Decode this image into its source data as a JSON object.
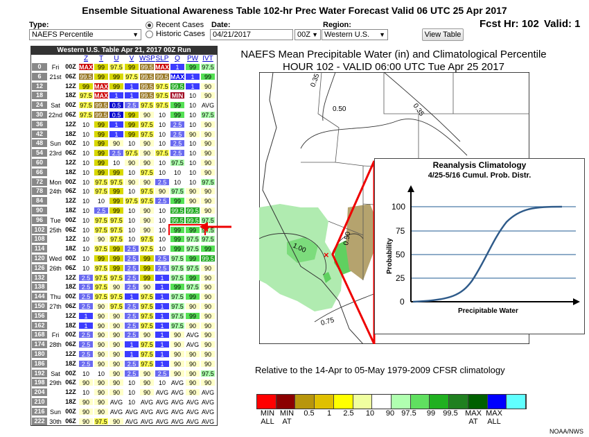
{
  "title": "Ensemble Situational Awareness Table 102-hr Prec Water Forecast Valid 06 UTC 25 Apr 2017",
  "controls": {
    "type_label": "Type:",
    "type_value": "NAEFS Percentile",
    "radio_recent": "Recent Cases",
    "radio_historic": "Historic Cases",
    "date_label": "Date:",
    "date_value": "04/21/2017",
    "cycle_value": "00Z",
    "region_label": "Region:",
    "region_value": "Western U.S.",
    "view_button": "View Table",
    "fcst_hr": "Fcst Hr: 102",
    "valid": "Valid: 1"
  },
  "table": {
    "header": "Western U.S. Table  Apr 21, 2017 00Z Run",
    "vars": [
      "Z",
      "T",
      "U",
      "V",
      "WSP",
      "SLP",
      "Q",
      "PW",
      "IVT"
    ],
    "colors": {
      "MAX": "#cc0000",
      "99.5": "#9a7b2a",
      "99": "#d8d800",
      "97.5": "#ffff55",
      "90": "#ffffc8",
      "10": "#ffffff",
      "2.5": "#6a6af0",
      "1": "#3c3cff",
      "0.5": "#1010d0",
      "MIN": "#a0001c",
      "AVG": "#ffffff",
      "g97": "#aaffaa",
      "g99": "#55e055",
      "g995": "#22aa22",
      "gMAX": "#007700"
    },
    "rows": [
      {
        "hr": "0",
        "day": "Fri",
        "z": "00Z",
        "v": [
          "MAX",
          "99",
          "97.5",
          "99",
          "99.5",
          "MAX",
          "1",
          "99",
          "97.5"
        ]
      },
      {
        "hr": "6",
        "day": "21st",
        "z": "06Z",
        "v": [
          "99.5",
          "99",
          "99",
          "97.5",
          "99.5",
          "99.5",
          "MAX",
          "1",
          "99"
        ]
      },
      {
        "hr": "12",
        "day": "",
        "z": "12Z",
        "v": [
          "99",
          "MAX",
          "99",
          "1",
          "99.5",
          "97.5",
          "99.5",
          "1",
          "90"
        ]
      },
      {
        "hr": "18",
        "day": "",
        "z": "18Z",
        "v": [
          "97.5",
          "MAX",
          "1",
          "1",
          "99.5",
          "97.5",
          "MIN",
          "10",
          "90"
        ]
      },
      {
        "hr": "24",
        "day": "Sat",
        "z": "00Z",
        "v": [
          "97.5",
          "99.5",
          "0.5",
          "2.5",
          "97.5",
          "97.5",
          "99",
          "10",
          "AVG"
        ]
      },
      {
        "hr": "30",
        "day": "22nd",
        "z": "06Z",
        "v": [
          "97.5",
          "99.5",
          "0.5",
          "99",
          "90",
          "10",
          "99",
          "10",
          "97.5"
        ]
      },
      {
        "hr": "36",
        "day": "",
        "z": "12Z",
        "v": [
          "10",
          "99",
          "1",
          "99",
          "97.5",
          "10",
          "2.5",
          "10",
          "90"
        ]
      },
      {
        "hr": "42",
        "day": "",
        "z": "18Z",
        "v": [
          "10",
          "99",
          "1",
          "99",
          "97.5",
          "10",
          "2.5",
          "90",
          "90"
        ]
      },
      {
        "hr": "48",
        "day": "Sun",
        "z": "00Z",
        "v": [
          "10",
          "99",
          "90",
          "10",
          "90",
          "10",
          "2.5",
          "10",
          "90"
        ]
      },
      {
        "hr": "54",
        "day": "23rd",
        "z": "06Z",
        "v": [
          "10",
          "99",
          "2.5",
          "97.5",
          "90",
          "97.5",
          "2.5",
          "10",
          "90"
        ]
      },
      {
        "hr": "60",
        "day": "",
        "z": "12Z",
        "v": [
          "10",
          "99",
          "10",
          "90",
          "90",
          "10",
          "97.5",
          "10",
          "90"
        ]
      },
      {
        "hr": "66",
        "day": "",
        "z": "18Z",
        "v": [
          "10",
          "99",
          "99",
          "10",
          "97.5",
          "10",
          "10",
          "10",
          "90"
        ]
      },
      {
        "hr": "72",
        "day": "Mon",
        "z": "00Z",
        "v": [
          "10",
          "97.5",
          "97.5",
          "90",
          "90",
          "2.5",
          "10",
          "10",
          "97.5"
        ]
      },
      {
        "hr": "78",
        "day": "24th",
        "z": "06Z",
        "v": [
          "10",
          "97.5",
          "99",
          "10",
          "97.5",
          "90",
          "97.5",
          "90",
          "90"
        ]
      },
      {
        "hr": "84",
        "day": "",
        "z": "12Z",
        "v": [
          "10",
          "10",
          "99",
          "97.5",
          "97.5",
          "2.5",
          "99",
          "90",
          "90"
        ]
      },
      {
        "hr": "90",
        "day": "",
        "z": "18Z",
        "v": [
          "10",
          "2.5",
          "99",
          "10",
          "90",
          "10",
          "99.5",
          "99.5",
          "90"
        ]
      },
      {
        "hr": "96",
        "day": "Tue",
        "z": "00Z",
        "v": [
          "10",
          "97.5",
          "97.5",
          "10",
          "90",
          "10",
          "99.5",
          "99.5",
          "97.5"
        ]
      },
      {
        "hr": "102",
        "day": "25th",
        "z": "06Z",
        "v": [
          "10",
          "97.5",
          "97.5",
          "10",
          "90",
          "10",
          "99",
          "99",
          "97.5"
        ]
      },
      {
        "hr": "108",
        "day": "",
        "z": "12Z",
        "v": [
          "10",
          "90",
          "97.5",
          "10",
          "97.5",
          "10",
          "99",
          "97.5",
          "97.5"
        ]
      },
      {
        "hr": "114",
        "day": "",
        "z": "18Z",
        "v": [
          "10",
          "97.5",
          "99",
          "2.5",
          "97.5",
          "10",
          "99",
          "97.5",
          "99"
        ]
      },
      {
        "hr": "120",
        "day": "Wed",
        "z": "00Z",
        "v": [
          "10",
          "99",
          "99",
          "2.5",
          "99",
          "2.5",
          "97.5",
          "99",
          "99.5"
        ]
      },
      {
        "hr": "126",
        "day": "26th",
        "z": "06Z",
        "v": [
          "10",
          "97.5",
          "99",
          "2.5",
          "99",
          "2.5",
          "97.5",
          "97.5",
          "90"
        ]
      },
      {
        "hr": "132",
        "day": "",
        "z": "12Z",
        "v": [
          "2.5",
          "97.5",
          "97.5",
          "2.5",
          "99",
          "1",
          "97.5",
          "99",
          "90"
        ]
      },
      {
        "hr": "138",
        "day": "",
        "z": "18Z",
        "v": [
          "2.5",
          "97.5",
          "90",
          "2.5",
          "90",
          "1",
          "99",
          "97.5",
          "90"
        ]
      },
      {
        "hr": "144",
        "day": "Thu",
        "z": "00Z",
        "v": [
          "2.5",
          "97.5",
          "97.5",
          "1",
          "97.5",
          "1",
          "97.5",
          "99",
          "90"
        ]
      },
      {
        "hr": "150",
        "day": "27th",
        "z": "06Z",
        "v": [
          "2.5",
          "90",
          "97.5",
          "2.5",
          "97.5",
          "1",
          "97.5",
          "90",
          "90"
        ]
      },
      {
        "hr": "156",
        "day": "",
        "z": "12Z",
        "v": [
          "1",
          "90",
          "90",
          "2.5",
          "97.5",
          "1",
          "97.5",
          "99",
          "90"
        ]
      },
      {
        "hr": "162",
        "day": "",
        "z": "18Z",
        "v": [
          "1",
          "90",
          "90",
          "2.5",
          "97.5",
          "1",
          "97.5",
          "90",
          "90"
        ]
      },
      {
        "hr": "168",
        "day": "Fri",
        "z": "00Z",
        "v": [
          "2.5",
          "90",
          "90",
          "2.5",
          "90",
          "1",
          "90",
          "AVG",
          "90"
        ]
      },
      {
        "hr": "174",
        "day": "28th",
        "z": "06Z",
        "v": [
          "2.5",
          "90",
          "90",
          "1",
          "97.5",
          "1",
          "90",
          "AVG",
          "90"
        ]
      },
      {
        "hr": "180",
        "day": "",
        "z": "12Z",
        "v": [
          "2.5",
          "90",
          "90",
          "1",
          "97.5",
          "1",
          "90",
          "90",
          "90"
        ]
      },
      {
        "hr": "186",
        "day": "",
        "z": "18Z",
        "v": [
          "2.5",
          "90",
          "90",
          "2.5",
          "97.5",
          "1",
          "90",
          "90",
          "90"
        ]
      },
      {
        "hr": "192",
        "day": "Sat",
        "z": "00Z",
        "v": [
          "10",
          "10",
          "90",
          "2.5",
          "90",
          "2.5",
          "90",
          "90",
          "97.5"
        ]
      },
      {
        "hr": "198",
        "day": "29th",
        "z": "06Z",
        "v": [
          "90",
          "90",
          "90",
          "10",
          "90",
          "10",
          "AVG",
          "90",
          "90"
        ]
      },
      {
        "hr": "204",
        "day": "",
        "z": "12Z",
        "v": [
          "10",
          "90",
          "90",
          "10",
          "90",
          "AVG",
          "AVG",
          "90",
          "AVG"
        ]
      },
      {
        "hr": "210",
        "day": "",
        "z": "18Z",
        "v": [
          "90",
          "90",
          "AVG",
          "10",
          "AVG",
          "AVG",
          "AVG",
          "AVG",
          "AVG"
        ]
      },
      {
        "hr": "216",
        "day": "Sun",
        "z": "00Z",
        "v": [
          "90",
          "90",
          "AVG",
          "AVG",
          "AVG",
          "AVG",
          "AVG",
          "AVG",
          "AVG"
        ]
      },
      {
        "hr": "222",
        "day": "30th",
        "z": "06Z",
        "v": [
          "90",
          "97.5",
          "90",
          "AVG",
          "AVG",
          "AVG",
          "AVG",
          "AVG",
          "AVG"
        ]
      }
    ]
  },
  "map": {
    "title_line1": "NAEFS Mean Precipitable Water (in) and Climatological Percentile",
    "title_line2": "HOUR 102 - VALID 06:00 UTC Tue Apr 25 2017",
    "contours": [
      "0.35",
      "0.35",
      "0.50",
      "1.00",
      "0.50",
      "0.75"
    ],
    "climatology_note": "Relative to the 14-Apr to 05-May 1979-2009 CFSR climatology"
  },
  "inset": {
    "title1": "Reanalysis Climatology",
    "title2": "4/25-5/16 Cumul. Prob. Distr.",
    "ylabel": "Probability",
    "xlabel": "Precipitable Water",
    "yticks": [
      "100",
      "75",
      "50",
      "25",
      "0"
    ]
  },
  "legend": {
    "colors": [
      "#ff0000",
      "#8b0000",
      "#b8960c",
      "#e0c000",
      "#ffff00",
      "#f0ffa0",
      "#ffffff",
      "#b0ffb0",
      "#60e060",
      "#20b020",
      "#208020",
      "#006000",
      "#0000ff",
      "#60ffff"
    ],
    "labels": [
      "MIN\nALL",
      "MIN\nAT",
      "0.5",
      "1",
      "2.5",
      "10",
      "90",
      "97.5",
      "99",
      "99.5",
      "MAX\nAT",
      "MAX\nALL"
    ]
  },
  "credit": "NOAA/NWS"
}
